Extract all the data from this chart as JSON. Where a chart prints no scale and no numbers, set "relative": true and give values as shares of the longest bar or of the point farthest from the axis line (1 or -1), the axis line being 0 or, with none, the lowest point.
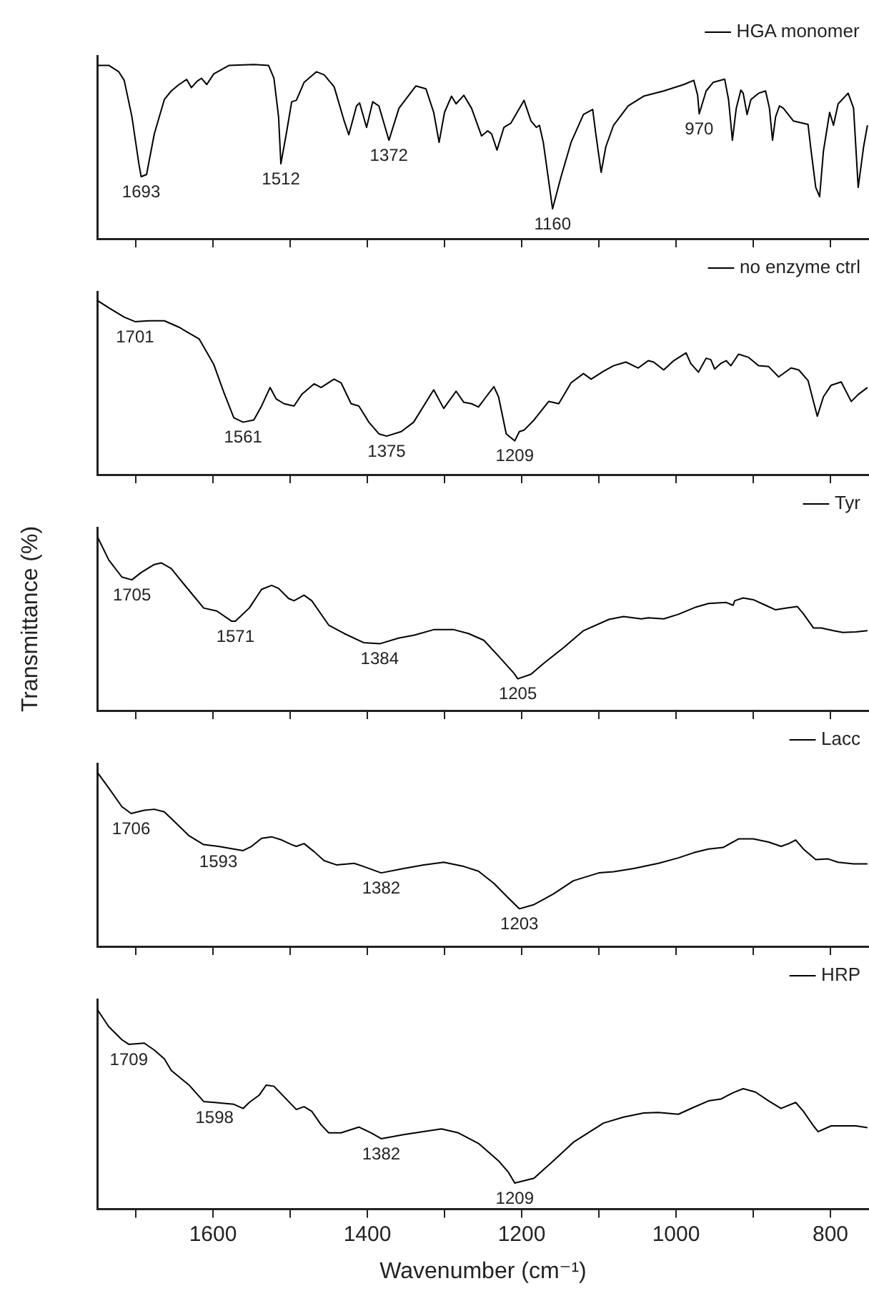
{
  "chart_data": [
    {
      "type": "line",
      "relative": true,
      "xlim": [
        1750,
        750
      ],
      "xticks": [
        {
          "value": 1700,
          "label": null
        },
        1600,
        {
          "value": 1500,
          "label": null
        },
        1400,
        {
          "value": 1300,
          "label": null
        },
        1200,
        {
          "value": 1100,
          "label": null
        },
        1000,
        {
          "value": 900,
          "label": null
        },
        800
      ],
      "tick_labels": false,
      "legend": "top right",
      "series": [
        {
          "name": "HGA monomer",
          "color": "#000000",
          "x": [
            1750,
            1735,
            1722,
            1715,
            1705,
            1696,
            1693,
            1686,
            1676,
            1663,
            1654,
            1644,
            1634,
            1628,
            1621,
            1615,
            1608,
            1599,
            1579,
            1547,
            1528,
            1521,
            1515,
            1512,
            1505,
            1498,
            1492,
            1482,
            1466,
            1456,
            1443,
            1430,
            1424,
            1414,
            1410,
            1401,
            1393,
            1385,
            1372,
            1359,
            1337,
            1324,
            1314,
            1307,
            1300,
            1291,
            1285,
            1275,
            1265,
            1252,
            1244,
            1239,
            1232,
            1223,
            1214,
            1197,
            1188,
            1181,
            1177,
            1172,
            1160,
            1149,
            1136,
            1120,
            1108,
            1104,
            1097,
            1091,
            1081,
            1062,
            1042,
            1016,
            990,
            977,
            972,
            970,
            961,
            952,
            937,
            932,
            927,
            922,
            916,
            913,
            908,
            903,
            893,
            884,
            879,
            875,
            871,
            866,
            861,
            848,
            829,
            825,
            819,
            814,
            809,
            801,
            796,
            790,
            777,
            770,
            764,
            757,
            752
          ],
          "values": [
            0.995,
            0.995,
            0.958,
            0.909,
            0.7,
            0.43,
            0.356,
            0.369,
            0.602,
            0.799,
            0.848,
            0.885,
            0.914,
            0.867,
            0.902,
            0.921,
            0.885,
            0.946,
            0.995,
            1.0,
            0.995,
            0.921,
            0.7,
            0.43,
            0.602,
            0.786,
            0.794,
            0.897,
            0.958,
            0.941,
            0.872,
            0.676,
            0.597,
            0.762,
            0.779,
            0.639,
            0.786,
            0.762,
            0.565,
            0.749,
            0.877,
            0.86,
            0.725,
            0.553,
            0.725,
            0.818,
            0.774,
            0.823,
            0.749,
            0.59,
            0.619,
            0.602,
            0.509,
            0.639,
            0.663,
            0.794,
            0.676,
            0.639,
            0.651,
            0.553,
            0.172,
            0.356,
            0.553,
            0.713,
            0.742,
            0.602,
            0.381,
            0.528,
            0.651,
            0.762,
            0.818,
            0.848,
            0.885,
            0.909,
            0.823,
            0.717,
            0.848,
            0.897,
            0.916,
            0.799,
            0.565,
            0.749,
            0.853,
            0.835,
            0.713,
            0.799,
            0.835,
            0.848,
            0.749,
            0.565,
            0.7,
            0.762,
            0.749,
            0.676,
            0.656,
            0.504,
            0.295,
            0.241,
            0.504,
            0.725,
            0.651,
            0.774,
            0.835,
            0.749,
            0.295,
            0.528,
            0.651
          ]
        }
      ],
      "annotations": [
        {
          "text": "1693",
          "x": 1693,
          "y": 0.356
        },
        {
          "text": "1512",
          "x": 1512,
          "y": 0.43
        },
        {
          "text": "1372",
          "x": 1372,
          "y": 0.565
        },
        {
          "text": "1160",
          "x": 1160,
          "y": 0.172
        },
        {
          "text": "970",
          "x": 970,
          "y": 0.717
        }
      ]
    },
    {
      "type": "line",
      "relative": true,
      "xlim": [
        1750,
        750
      ],
      "xticks": [
        {
          "value": 1700,
          "label": null
        },
        1600,
        {
          "value": 1500,
          "label": null
        },
        1400,
        {
          "value": 1300,
          "label": null
        },
        1200,
        {
          "value": 1100,
          "label": null
        },
        1000,
        {
          "value": 900,
          "label": null
        },
        800
      ],
      "tick_labels": false,
      "legend": "top right",
      "series": [
        {
          "name": "no enzyme ctrl",
          "color": "#000000",
          "x": [
            1750,
            1735,
            1715,
            1701,
            1683,
            1663,
            1644,
            1618,
            1599,
            1586,
            1573,
            1561,
            1547,
            1537,
            1526,
            1518,
            1508,
            1495,
            1485,
            1469,
            1460,
            1443,
            1434,
            1421,
            1411,
            1398,
            1385,
            1375,
            1356,
            1340,
            1314,
            1301,
            1285,
            1275,
            1265,
            1256,
            1246,
            1236,
            1230,
            1220,
            1209,
            1203,
            1197,
            1184,
            1165,
            1152,
            1136,
            1120,
            1110,
            1094,
            1081,
            1065,
            1049,
            1036,
            1029,
            1016,
            1003,
            987,
            981,
            971,
            961,
            955,
            950,
            942,
            935,
            929,
            919,
            906,
            893,
            880,
            867,
            851,
            841,
            829,
            822,
            817,
            809,
            799,
            786,
            773,
            764,
            752
          ],
          "values": [
            1.0,
            0.957,
            0.904,
            0.878,
            0.883,
            0.883,
            0.846,
            0.779,
            0.633,
            0.473,
            0.327,
            0.301,
            0.314,
            0.394,
            0.5,
            0.434,
            0.407,
            0.394,
            0.46,
            0.521,
            0.5,
            0.548,
            0.527,
            0.407,
            0.394,
            0.301,
            0.234,
            0.221,
            0.247,
            0.301,
            0.487,
            0.38,
            0.479,
            0.415,
            0.407,
            0.388,
            0.447,
            0.505,
            0.447,
            0.234,
            0.194,
            0.247,
            0.255,
            0.314,
            0.42,
            0.407,
            0.527,
            0.58,
            0.548,
            0.593,
            0.625,
            0.646,
            0.612,
            0.654,
            0.646,
            0.601,
            0.654,
            0.699,
            0.638,
            0.588,
            0.668,
            0.66,
            0.606,
            0.638,
            0.654,
            0.625,
            0.691,
            0.673,
            0.625,
            0.62,
            0.561,
            0.612,
            0.601,
            0.54,
            0.42,
            0.335,
            0.447,
            0.513,
            0.532,
            0.42,
            0.46,
            0.5
          ]
        }
      ],
      "annotations": [
        {
          "text": "1701",
          "x": 1701,
          "y": 0.878
        },
        {
          "text": "1561",
          "x": 1561,
          "y": 0.301
        },
        {
          "text": "1375",
          "x": 1375,
          "y": 0.221
        },
        {
          "text": "1209",
          "x": 1209,
          "y": 0.194
        }
      ]
    },
    {
      "type": "line",
      "relative": true,
      "xlim": [
        1750,
        750
      ],
      "xticks": [
        {
          "value": 1700,
          "label": null
        },
        1600,
        {
          "value": 1500,
          "label": null
        },
        1400,
        {
          "value": 1300,
          "label": null
        },
        1200,
        {
          "value": 1100,
          "label": null
        },
        1000,
        {
          "value": 900,
          "label": null
        },
        800
      ],
      "tick_labels": false,
      "legend": "top right",
      "ylabel": "Transmittance (%)",
      "series": [
        {
          "name": "Tyr",
          "color": "#000000",
          "x": [
            1750,
            1735,
            1718,
            1705,
            1693,
            1676,
            1667,
            1654,
            1638,
            1612,
            1595,
            1576,
            1571,
            1553,
            1537,
            1524,
            1515,
            1502,
            1495,
            1482,
            1472,
            1450,
            1430,
            1405,
            1384,
            1359,
            1340,
            1314,
            1288,
            1269,
            1249,
            1230,
            1210,
            1205,
            1188,
            1172,
            1146,
            1120,
            1087,
            1068,
            1045,
            1036,
            1016,
            997,
            974,
            958,
            935,
            926,
            924,
            913,
            900,
            884,
            871,
            858,
            843,
            835,
            822,
            812,
            796,
            784,
            767,
            752
          ],
          "values": [
            1.0,
            0.864,
            0.766,
            0.75,
            0.792,
            0.838,
            0.847,
            0.815,
            0.727,
            0.588,
            0.571,
            0.513,
            0.513,
            0.588,
            0.695,
            0.718,
            0.701,
            0.643,
            0.63,
            0.662,
            0.63,
            0.49,
            0.442,
            0.39,
            0.383,
            0.416,
            0.432,
            0.464,
            0.464,
            0.442,
            0.403,
            0.312,
            0.214,
            0.182,
            0.208,
            0.269,
            0.36,
            0.458,
            0.523,
            0.539,
            0.526,
            0.532,
            0.526,
            0.552,
            0.594,
            0.614,
            0.62,
            0.604,
            0.63,
            0.646,
            0.636,
            0.604,
            0.578,
            0.588,
            0.597,
            0.555,
            0.474,
            0.474,
            0.458,
            0.448,
            0.451,
            0.458
          ]
        }
      ],
      "annotations": [
        {
          "text": "1705",
          "x": 1705,
          "y": 0.75
        },
        {
          "text": "1571",
          "x": 1571,
          "y": 0.513
        },
        {
          "text": "1384",
          "x": 1384,
          "y": 0.383
        },
        {
          "text": "1205",
          "x": 1205,
          "y": 0.182
        }
      ]
    },
    {
      "type": "line",
      "relative": true,
      "xlim": [
        1750,
        750
      ],
      "xticks": [
        {
          "value": 1700,
          "label": null
        },
        1600,
        {
          "value": 1500,
          "label": null
        },
        1400,
        {
          "value": 1300,
          "label": null
        },
        1200,
        {
          "value": 1100,
          "label": null
        },
        1000,
        {
          "value": 900,
          "label": null
        },
        800
      ],
      "tick_labels": false,
      "legend": "top right",
      "series": [
        {
          "name": "Lacc",
          "color": "#000000",
          "x": [
            1750,
            1735,
            1718,
            1706,
            1689,
            1676,
            1663,
            1650,
            1631,
            1612,
            1593,
            1573,
            1561,
            1550,
            1537,
            1524,
            1511,
            1498,
            1492,
            1482,
            1469,
            1456,
            1440,
            1417,
            1405,
            1382,
            1353,
            1327,
            1301,
            1275,
            1256,
            1236,
            1217,
            1203,
            1184,
            1159,
            1133,
            1100,
            1081,
            1055,
            1023,
            997,
            977,
            958,
            939,
            919,
            900,
            880,
            864,
            854,
            845,
            835,
            819,
            803,
            790,
            770,
            752
          ],
          "values": [
            1.0,
            0.909,
            0.802,
            0.763,
            0.781,
            0.787,
            0.772,
            0.717,
            0.635,
            0.584,
            0.574,
            0.559,
            0.55,
            0.574,
            0.62,
            0.629,
            0.611,
            0.584,
            0.574,
            0.59,
            0.544,
            0.492,
            0.468,
            0.477,
            0.459,
            0.422,
            0.447,
            0.468,
            0.483,
            0.459,
            0.432,
            0.362,
            0.277,
            0.216,
            0.24,
            0.301,
            0.377,
            0.422,
            0.429,
            0.447,
            0.477,
            0.508,
            0.538,
            0.559,
            0.568,
            0.617,
            0.617,
            0.599,
            0.574,
            0.59,
            0.611,
            0.559,
            0.498,
            0.502,
            0.483,
            0.474,
            0.474
          ]
        }
      ],
      "annotations": [
        {
          "text": "1706",
          "x": 1706,
          "y": 0.763
        },
        {
          "text": "1593",
          "x": 1593,
          "y": 0.574
        },
        {
          "text": "1382",
          "x": 1382,
          "y": 0.422
        },
        {
          "text": "1203",
          "x": 1203,
          "y": 0.216
        }
      ]
    },
    {
      "type": "line",
      "relative": true,
      "xlim": [
        1750,
        750
      ],
      "xticks": [
        {
          "value": 1700,
          "label": null
        },
        1600,
        {
          "value": 1500,
          "label": null
        },
        1400,
        {
          "value": 1300,
          "label": null
        },
        1200,
        {
          "value": 1100,
          "label": null
        },
        1000,
        {
          "value": 900,
          "label": null
        },
        800
      ],
      "tick_labels": "x",
      "legend": "top right",
      "xlabel": "Wavenumber (cm⁻¹)",
      "series": [
        {
          "name": "HRP",
          "color": "#000000",
          "x": [
            1750,
            1735,
            1718,
            1709,
            1689,
            1676,
            1663,
            1654,
            1631,
            1612,
            1598,
            1573,
            1561,
            1553,
            1540,
            1531,
            1521,
            1508,
            1492,
            1482,
            1472,
            1460,
            1450,
            1434,
            1411,
            1395,
            1382,
            1353,
            1327,
            1304,
            1282,
            1256,
            1230,
            1217,
            1209,
            1184,
            1159,
            1133,
            1094,
            1068,
            1042,
            1023,
            997,
            977,
            958,
            942,
            926,
            913,
            897,
            880,
            864,
            845,
            835,
            822,
            816,
            799,
            784,
            767,
            752
          ],
          "values": [
            1.0,
            0.913,
            0.848,
            0.825,
            0.831,
            0.796,
            0.752,
            0.694,
            0.621,
            0.539,
            0.534,
            0.525,
            0.504,
            0.534,
            0.571,
            0.621,
            0.615,
            0.563,
            0.499,
            0.513,
            0.49,
            0.423,
            0.382,
            0.382,
            0.411,
            0.382,
            0.353,
            0.373,
            0.388,
            0.402,
            0.382,
            0.329,
            0.242,
            0.184,
            0.131,
            0.155,
            0.242,
            0.335,
            0.431,
            0.461,
            0.481,
            0.484,
            0.475,
            0.51,
            0.542,
            0.551,
            0.583,
            0.603,
            0.586,
            0.542,
            0.504,
            0.534,
            0.49,
            0.417,
            0.388,
            0.417,
            0.417,
            0.417,
            0.408
          ]
        }
      ],
      "annotations": [
        {
          "text": "1709",
          "x": 1709,
          "y": 0.825
        },
        {
          "text": "1598",
          "x": 1598,
          "y": 0.534
        },
        {
          "text": "1382",
          "x": 1382,
          "y": 0.353
        },
        {
          "text": "1209",
          "x": 1209,
          "y": 0.131
        }
      ]
    }
  ]
}
